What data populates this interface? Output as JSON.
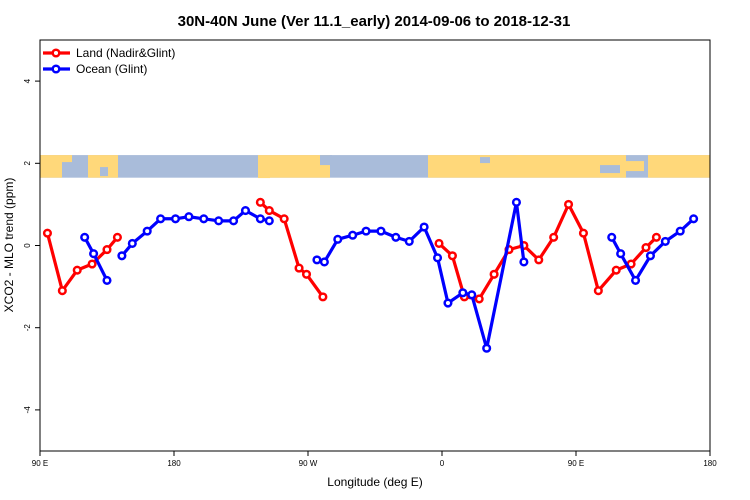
{
  "chart_data": {
    "type": "line",
    "title": "30N-40N June (Ver 11.1_early)   2014-09-06 to 2018-12-31",
    "xlabel": "Longitude (deg E)",
    "ylabel": "XCO2 - MLO trend (ppm)",
    "x_ticks": [
      {
        "value": 90,
        "label": "90 E"
      },
      {
        "value": 180,
        "label": "180"
      },
      {
        "value": 270,
        "label": "90 W"
      },
      {
        "value": 360,
        "label": "0"
      },
      {
        "value": 450,
        "label": "90 E"
      },
      {
        "value": 540,
        "label": "180"
      }
    ],
    "y_ticks": [
      {
        "value": -4,
        "label": "-4"
      },
      {
        "value": -2,
        "label": "-2"
      },
      {
        "value": 0,
        "label": "0"
      },
      {
        "value": 2,
        "label": "2"
      },
      {
        "value": 4,
        "label": "4"
      }
    ],
    "xlim": [
      90,
      540
    ],
    "ylim": [
      -5,
      5
    ],
    "grid": false,
    "legend_position": "top-left",
    "land_ocean_strip": {
      "ymin": 1.65,
      "ymax": 2.2,
      "land_color": "#FFD87A",
      "ocean_color": "#A9BCDA"
    },
    "series": [
      {
        "name": "Land (Nadir&Glint)",
        "color": "#FF0000",
        "segments": [
          {
            "x": [
              95,
              105,
              115,
              125,
              135,
              142
            ],
            "y": [
              0.3,
              -1.1,
              -0.6,
              -0.45,
              -0.1,
              0.2
            ]
          },
          {
            "x": [
              238,
              244,
              254,
              264,
              269,
              280
            ],
            "y": [
              1.05,
              0.85,
              0.65,
              -0.55,
              -0.7,
              -1.25
            ]
          },
          {
            "x": [
              358,
              367,
              375,
              385,
              395,
              405,
              415,
              425,
              435,
              445,
              455,
              465,
              477,
              487,
              497,
              504
            ],
            "y": [
              0.05,
              -0.25,
              -1.25,
              -1.3,
              -0.7,
              -0.1,
              0.0,
              -0.35,
              0.2,
              1.0,
              0.3,
              -1.1,
              -0.6,
              -0.45,
              -0.05,
              0.2
            ]
          }
        ]
      },
      {
        "name": "Ocean (Glint)",
        "color": "#0000FF",
        "segments": [
          {
            "x": [
              120,
              126,
              135
            ],
            "y": [
              0.2,
              -0.2,
              -0.85
            ]
          },
          {
            "x": [
              145,
              152,
              162,
              171,
              181,
              190,
              200,
              210,
              220,
              228,
              238,
              244
            ],
            "y": [
              -0.25,
              0.05,
              0.35,
              0.65,
              0.65,
              0.7,
              0.65,
              0.6,
              0.6,
              0.85,
              0.65,
              0.6
            ]
          },
          {
            "x": [
              276,
              281,
              290,
              300,
              309,
              319,
              329,
              338,
              348,
              357,
              364,
              374,
              380,
              390,
              410,
              415
            ],
            "y": [
              -0.35,
              -0.4,
              0.15,
              0.25,
              0.35,
              0.35,
              0.2,
              0.1,
              0.45,
              -0.3,
              -1.4,
              -1.15,
              -1.2,
              -2.5,
              1.05,
              -0.4
            ]
          },
          {
            "x": [
              474,
              480,
              490,
              500,
              510,
              520,
              529
            ],
            "y": [
              0.2,
              -0.2,
              -0.85,
              -0.25,
              0.1,
              0.35,
              0.65
            ]
          }
        ]
      }
    ]
  }
}
